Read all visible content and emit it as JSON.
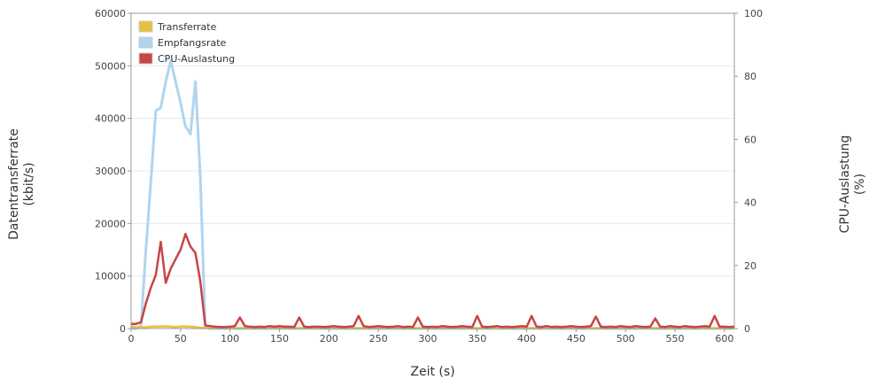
{
  "chart_data": {
    "type": "line",
    "title": "",
    "xlabel": "Zeit (s)",
    "ylabel_left": [
      "Datentransferrate",
      "(kbit/s)"
    ],
    "ylabel_right": [
      "CPU-Auslastung",
      "(%)"
    ],
    "xlim": [
      0,
      610
    ],
    "ylim_left": [
      0,
      60000
    ],
    "ylim_right": [
      0,
      100
    ],
    "x_ticks": [
      0,
      50,
      100,
      150,
      200,
      250,
      300,
      350,
      400,
      450,
      500,
      550,
      600
    ],
    "y_left_ticks": [
      0,
      10000,
      20000,
      30000,
      40000,
      50000,
      60000
    ],
    "y_right_ticks": [
      0,
      20,
      40,
      60,
      80,
      100
    ],
    "grid": true,
    "legend_position": "top-left",
    "colors": {
      "transferrate": "#e8c040",
      "empfangsrate": "#b0d4ee",
      "cpu": "#c84444",
      "frame": "#999999",
      "grid": "#e8e8e8"
    },
    "series": [
      {
        "name": "Transferrate",
        "axis": "left",
        "x": [
          0,
          5,
          10,
          15,
          20,
          25,
          30,
          35,
          40,
          45,
          50,
          55,
          60,
          65,
          70,
          75,
          80,
          610
        ],
        "y": [
          400,
          300,
          200,
          250,
          350,
          400,
          380,
          420,
          350,
          300,
          380,
          400,
          350,
          300,
          150,
          100,
          80,
          80
        ]
      },
      {
        "name": "Empfangsrate",
        "axis": "left",
        "x": [
          0,
          5,
          10,
          15,
          20,
          25,
          30,
          35,
          40,
          45,
          50,
          55,
          60,
          65,
          70,
          75,
          80,
          610
        ],
        "y": [
          0,
          0,
          500,
          15000,
          28000,
          41500,
          42000,
          47000,
          51000,
          47000,
          43000,
          38500,
          37000,
          47000,
          29000,
          300,
          0,
          0
        ]
      },
      {
        "name": "CPU-Auslastung",
        "axis": "right",
        "x": [
          0,
          5,
          10,
          15,
          20,
          25,
          30,
          35,
          40,
          45,
          50,
          55,
          60,
          65,
          70,
          75,
          80,
          85,
          90,
          95,
          100,
          105,
          110,
          115,
          120,
          125,
          130,
          135,
          140,
          145,
          150,
          155,
          160,
          165,
          170,
          175,
          180,
          185,
          190,
          195,
          200,
          205,
          210,
          215,
          220,
          225,
          230,
          235,
          240,
          245,
          250,
          255,
          260,
          265,
          270,
          275,
          280,
          285,
          290,
          295,
          300,
          305,
          310,
          315,
          320,
          325,
          330,
          335,
          340,
          345,
          350,
          355,
          360,
          365,
          370,
          375,
          380,
          385,
          390,
          395,
          400,
          405,
          410,
          415,
          420,
          425,
          430,
          435,
          440,
          445,
          450,
          455,
          460,
          465,
          470,
          475,
          480,
          485,
          490,
          495,
          500,
          505,
          510,
          515,
          520,
          525,
          530,
          535,
          540,
          545,
          550,
          555,
          560,
          565,
          570,
          575,
          580,
          585,
          590,
          595,
          600,
          605,
          610
        ],
        "y": [
          1.5,
          1.5,
          2,
          8,
          13,
          17,
          27.5,
          14.5,
          19,
          22,
          25,
          30,
          26,
          24,
          15,
          1,
          0.8,
          0.6,
          0.5,
          0.5,
          0.6,
          0.8,
          3.5,
          0.8,
          0.6,
          0.5,
          0.6,
          0.5,
          0.8,
          0.6,
          0.8,
          0.6,
          0.6,
          0.5,
          3.5,
          0.6,
          0.5,
          0.6,
          0.6,
          0.5,
          0.6,
          0.8,
          0.6,
          0.5,
          0.6,
          0.8,
          4,
          0.8,
          0.5,
          0.6,
          0.8,
          0.6,
          0.5,
          0.6,
          0.8,
          0.5,
          0.6,
          0.5,
          3.5,
          0.6,
          0.5,
          0.6,
          0.5,
          0.8,
          0.6,
          0.5,
          0.6,
          0.8,
          0.6,
          0.5,
          4,
          0.6,
          0.5,
          0.6,
          0.8,
          0.5,
          0.6,
          0.5,
          0.6,
          0.8,
          0.6,
          4,
          0.6,
          0.5,
          0.8,
          0.5,
          0.6,
          0.5,
          0.6,
          0.8,
          0.6,
          0.5,
          0.6,
          0.8,
          3.8,
          0.6,
          0.5,
          0.6,
          0.5,
          0.8,
          0.6,
          0.5,
          0.8,
          0.6,
          0.5,
          0.6,
          3.2,
          0.6,
          0.5,
          0.8,
          0.6,
          0.5,
          0.8,
          0.6,
          0.5,
          0.6,
          0.8,
          0.6,
          4,
          0.6,
          0.6,
          0.5,
          0.6
        ]
      }
    ]
  }
}
